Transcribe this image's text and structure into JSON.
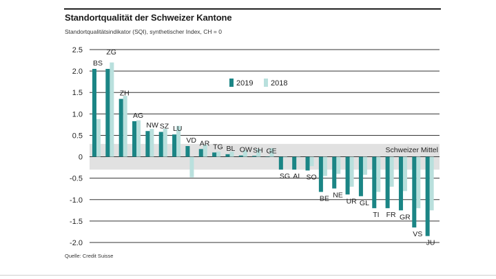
{
  "header": {
    "title": "Standortqualität der Schweizer Kantone",
    "subtitle": "Standortqualitätsindikator (SQI), synthetischer Index, CH = 0"
  },
  "footer": {
    "source": "Quelle: Credit Suisse"
  },
  "colors": {
    "series_2019": "#1b8585",
    "series_2018": "#b9e0dd",
    "band": "#e1e1e1",
    "grid": "#333333"
  },
  "chart_data": {
    "type": "bar",
    "title": "Standortqualität der Schweizer Kantone",
    "subtitle": "Standortqualitätsindikator (SQI), synthetischer Index, CH = 0",
    "xlabel": "",
    "ylabel": "",
    "ylim": [
      -2.0,
      2.5
    ],
    "yticks": [
      2.5,
      2.0,
      1.5,
      1.0,
      0.5,
      0,
      -0.5,
      -1.0,
      -1.5,
      -2.0
    ],
    "ytick_labels": [
      "2.5",
      "2.0",
      "1.5",
      "1.0",
      "0.5",
      "0",
      "-0.5",
      "-1.0",
      "-1.5",
      "-2.0"
    ],
    "grid": true,
    "legend_position": "top-right",
    "reference_label": "Schweizer Mittel",
    "categories": [
      "BS",
      "ZG",
      "ZH",
      "AG",
      "NW",
      "SZ",
      "LU",
      "VD",
      "AR",
      "TG",
      "BL",
      "OW",
      "SH",
      "GE",
      "SG",
      "AI",
      "SO",
      "BE",
      "NE",
      "UR",
      "GL",
      "TI",
      "FR",
      "GR",
      "VS",
      "JU"
    ],
    "series": [
      {
        "name": "2019",
        "values": [
          2.05,
          2.05,
          1.35,
          0.83,
          0.6,
          0.58,
          0.52,
          0.25,
          0.18,
          0.1,
          0.06,
          0.03,
          0.02,
          0.0,
          -0.3,
          -0.3,
          -0.32,
          -0.82,
          -0.74,
          -0.88,
          -0.92,
          -1.2,
          -1.2,
          -1.25,
          -1.65,
          -1.85
        ]
      },
      {
        "name": "2018",
        "values": [
          0.88,
          2.2,
          1.42,
          0.85,
          0.65,
          0.65,
          0.72,
          -0.48,
          0.28,
          0.12,
          0.12,
          0.15,
          0.18,
          0.2,
          -0.02,
          -0.02,
          -0.22,
          -0.45,
          -0.4,
          -0.7,
          -0.42,
          -0.82,
          -0.7,
          -0.8,
          -1.2,
          -1.25
        ]
      }
    ]
  }
}
